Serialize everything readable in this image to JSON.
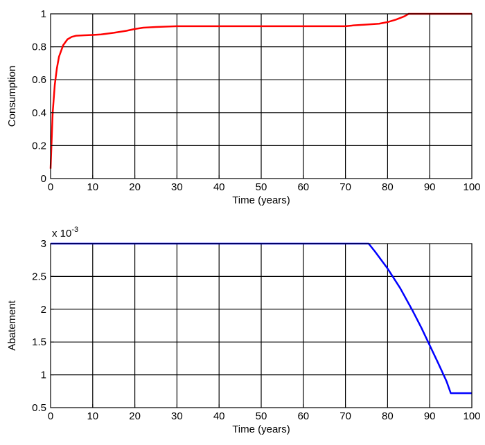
{
  "chart_data": [
    {
      "type": "line",
      "title": "",
      "xlabel": "Time (years)",
      "ylabel": "Consumption",
      "xlim": [
        0,
        100
      ],
      "ylim": [
        0,
        1
      ],
      "grid": true,
      "x_ticks": [
        0,
        10,
        20,
        30,
        40,
        50,
        60,
        70,
        80,
        90,
        100
      ],
      "y_ticks": [
        0,
        0.2,
        0.4,
        0.6,
        0.8,
        1
      ],
      "x_tick_labels": [
        "0",
        "10",
        "20",
        "30",
        "40",
        "50",
        "60",
        "70",
        "80",
        "90",
        "100"
      ],
      "y_tick_labels": [
        "0",
        "0.2",
        "0.4",
        "0.6",
        "0.8",
        "1"
      ],
      "series": [
        {
          "color": "#ff0000",
          "x": [
            0,
            0.5,
            1,
            1.5,
            2,
            3,
            4,
            5,
            6,
            8,
            10,
            12,
            15,
            18,
            20,
            22,
            25,
            30,
            40,
            50,
            60,
            65,
            70,
            72,
            75,
            78,
            80,
            82,
            84,
            85,
            86,
            90,
            100
          ],
          "y": [
            0.06,
            0.4,
            0.57,
            0.67,
            0.74,
            0.81,
            0.845,
            0.86,
            0.867,
            0.87,
            0.872,
            0.875,
            0.885,
            0.897,
            0.908,
            0.916,
            0.92,
            0.925,
            0.925,
            0.925,
            0.925,
            0.925,
            0.925,
            0.93,
            0.935,
            0.94,
            0.95,
            0.965,
            0.985,
            1.0,
            1.0,
            1.0,
            1.0
          ]
        }
      ]
    },
    {
      "type": "line",
      "title": "",
      "xlabel": "Time (years)",
      "ylabel": "Abatement",
      "multiplier_label": "x 10",
      "multiplier_exponent": "-3",
      "xlim": [
        0,
        100
      ],
      "ylim": [
        0.5,
        3
      ],
      "grid": true,
      "x_ticks": [
        0,
        10,
        20,
        30,
        40,
        50,
        60,
        70,
        80,
        90,
        100
      ],
      "y_ticks": [
        0.5,
        1,
        1.5,
        2,
        2.5,
        3
      ],
      "x_tick_labels": [
        "0",
        "10",
        "20",
        "30",
        "40",
        "50",
        "60",
        "70",
        "80",
        "90",
        "100"
      ],
      "y_tick_labels": [
        "0.5",
        "1",
        "1.5",
        "2",
        "2.5",
        "3"
      ],
      "series": [
        {
          "color": "#0000ff",
          "x": [
            0,
            75.5,
            77,
            80,
            83,
            86,
            88,
            90,
            92,
            94,
            95,
            100
          ],
          "y": [
            3,
            3,
            2.88,
            2.62,
            2.32,
            1.97,
            1.72,
            1.45,
            1.18,
            0.9,
            0.72,
            0.72
          ]
        }
      ]
    }
  ]
}
